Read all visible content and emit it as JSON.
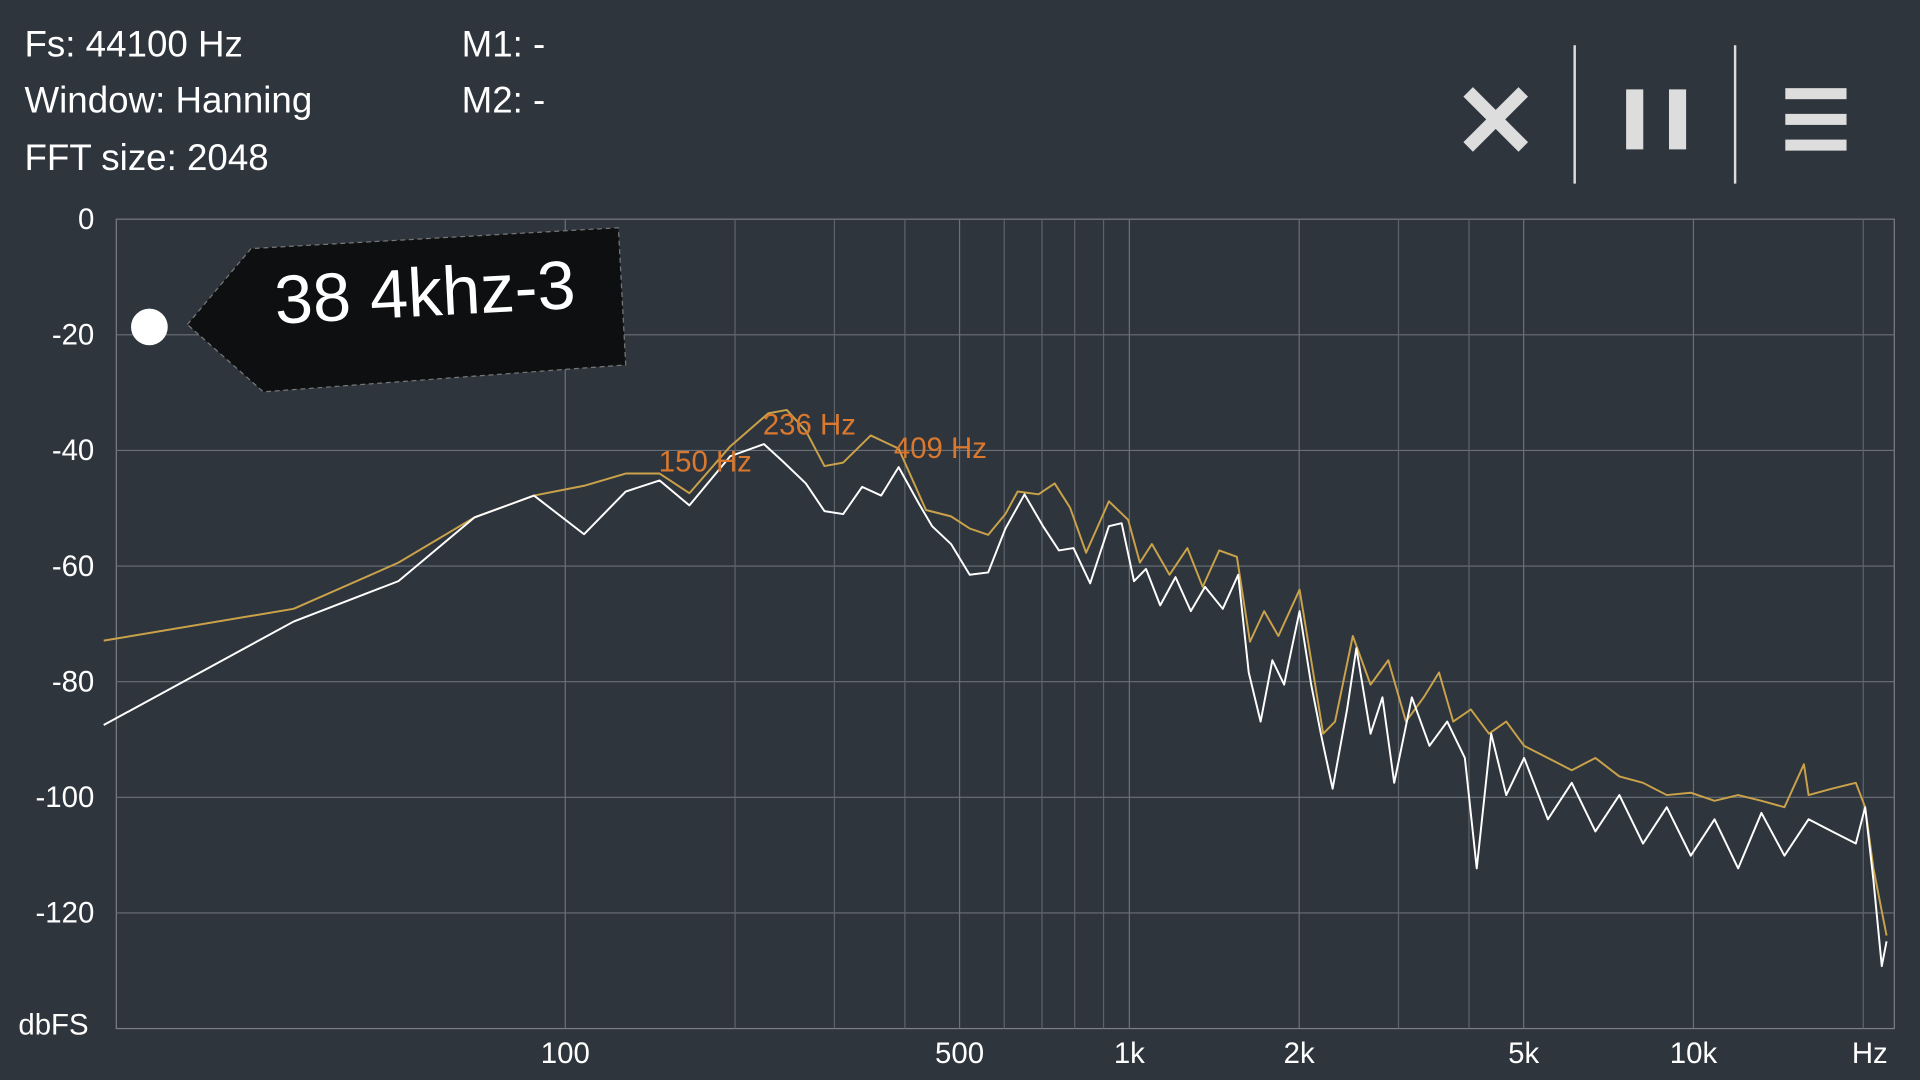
{
  "header": {
    "fs": "Fs: 44100 Hz",
    "window": "Window: Hanning",
    "fft": "FFT size: 2048",
    "m1": "M1: -",
    "m2": "M2: -"
  },
  "tag": "38 4khz-3",
  "chart_data": {
    "type": "line",
    "log_x": true,
    "grid": true,
    "ylabel": "dbFS",
    "xunit": "Hz",
    "xlim": [
      16,
      22700
    ],
    "ylim": [
      -140,
      0
    ],
    "xticks": [
      100,
      500,
      {
        "value": 1000,
        "label": "1k"
      },
      {
        "value": 2000,
        "label": "2k"
      },
      {
        "value": 5000,
        "label": "5k"
      },
      {
        "value": 10000,
        "label": "10k"
      }
    ],
    "x_minor_grid": [
      200,
      300,
      400,
      600,
      700,
      800,
      900,
      3000,
      4000,
      20000
    ],
    "yticks": [
      0,
      -20,
      -40,
      -60,
      -80,
      -100,
      -120
    ],
    "annotations": [
      "150 Hz",
      "236 Hz",
      "409 Hz"
    ],
    "series": [
      {
        "color": "#c9a24a",
        "x": [
          15.2,
          33,
          50.6,
          69,
          88,
          108,
          128,
          147,
          166,
          196,
          229,
          247,
          267,
          288,
          311,
          348,
          390,
          436,
          483,
          521,
          562,
          603,
          634,
          690,
          737,
          785,
          838,
          920,
          995,
          1044,
          1096,
          1178,
          1267,
          1349,
          1443,
          1551,
          1636,
          1734,
          1837,
          2003,
          2101,
          2206,
          2316,
          2490,
          2677,
          2878,
          3093,
          3325,
          3540,
          3750,
          4030,
          4340,
          4657,
          5010,
          5520,
          6085,
          6700,
          7390,
          8140,
          8970,
          9890,
          10900,
          12000,
          13200,
          14500,
          15700,
          16000,
          17600,
          19400,
          20150,
          20850,
          21570,
          22000
        ],
        "values": [
          -72.9,
          -67.4,
          -59.4,
          -51.6,
          -47.8,
          -46.1,
          -44,
          -44,
          -47.4,
          -39.3,
          -33.6,
          -33,
          -36.6,
          -42.7,
          -42.1,
          -37.4,
          -39.7,
          -50.3,
          -51.4,
          -53.5,
          -54.6,
          -51,
          -47.1,
          -47.6,
          -45.7,
          -49.9,
          -57.7,
          -48.8,
          -52,
          -59.4,
          -56.2,
          -61.5,
          -56.9,
          -63.6,
          -57.3,
          -58.4,
          -73.1,
          -67.8,
          -72.1,
          -64.1,
          -76.3,
          -89,
          -86.9,
          -72.1,
          -80.5,
          -76.3,
          -86.9,
          -82.7,
          -78.4,
          -86.9,
          -84.8,
          -89,
          -86.9,
          -91.1,
          -93.2,
          -95.3,
          -93.2,
          -96.4,
          -97.5,
          -99.6,
          -99.2,
          -100.6,
          -99.6,
          -100.6,
          -101.7,
          -94.3,
          -99.6,
          -98.5,
          -97.5,
          -101.7,
          -112.3,
          -119.7,
          -123.9
        ]
      },
      {
        "color": "#ffffff",
        "x": [
          15.2,
          33,
          50.6,
          69,
          88,
          108,
          128,
          147,
          166,
          196,
          225,
          243,
          267,
          288,
          311,
          336,
          363,
          390,
          424,
          447,
          483,
          521,
          562,
          603,
          652,
          703,
          750,
          796,
          852,
          920,
          969,
          1019,
          1070,
          1134,
          1207,
          1285,
          1362,
          1464,
          1559,
          1628,
          1709,
          1793,
          1881,
          2003,
          2101,
          2185,
          2293,
          2432,
          2526,
          2677,
          2809,
          2948,
          3168,
          3405,
          3660,
          3934,
          4128,
          4379,
          4657,
          5010,
          5520,
          6085,
          6700,
          7390,
          8140,
          8970,
          9890,
          10900,
          12000,
          13200,
          14500,
          16000,
          17600,
          19400,
          20150,
          20850,
          21570,
          22000
        ],
        "values": [
          -87.5,
          -69.6,
          -62.6,
          -51.6,
          -47.8,
          -54.5,
          -47.1,
          -45.2,
          -49.5,
          -41,
          -38.9,
          -41.9,
          -45.7,
          -50.5,
          -51,
          -46.3,
          -47.8,
          -42.9,
          -49.3,
          -53.1,
          -56.2,
          -61.5,
          -61.1,
          -53.5,
          -47.6,
          -53.1,
          -57.3,
          -56.9,
          -63,
          -53.1,
          -52.6,
          -62.6,
          -60.5,
          -66.8,
          -61.9,
          -67.8,
          -63.6,
          -67.4,
          -61.5,
          -78.4,
          -86.9,
          -76.3,
          -80.5,
          -67.8,
          -80.5,
          -89,
          -98.5,
          -84.8,
          -74.2,
          -89,
          -82.7,
          -97.5,
          -82.7,
          -91.1,
          -86.9,
          -93.2,
          -112.3,
          -89,
          -99.6,
          -93.2,
          -103.8,
          -97.5,
          -105.9,
          -99.6,
          -108,
          -101.7,
          -110.1,
          -103.8,
          -112.3,
          -102.7,
          -110.1,
          -103.8,
          -105.9,
          -108,
          -101.7,
          -114.4,
          -129.2,
          -124.9
        ]
      }
    ]
  }
}
